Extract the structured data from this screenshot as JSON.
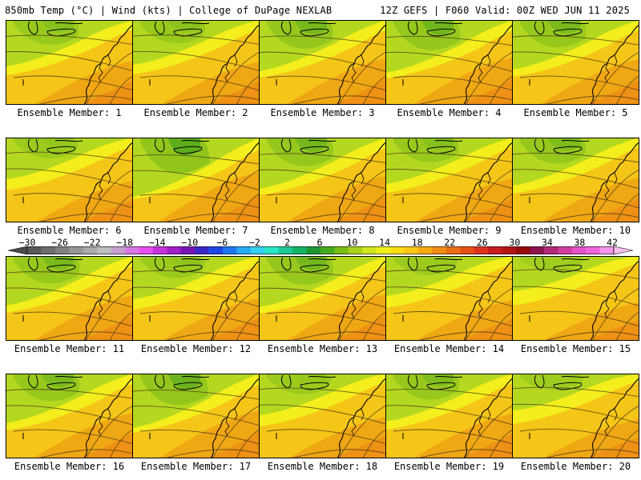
{
  "header": {
    "left": "850mb Temp (°C) | Wind (kts) | College of DuPage NEXLAB",
    "right": "12Z GEFS | F060 Valid: 00Z WED JUN 11 2025"
  },
  "panels": [
    {
      "label": "Ensemble Member: 1",
      "cool": 0.45
    },
    {
      "label": "Ensemble Member: 2",
      "cool": 0.4
    },
    {
      "label": "Ensemble Member: 3",
      "cool": 0.6
    },
    {
      "label": "Ensemble Member: 4",
      "cool": 0.65
    },
    {
      "label": "Ensemble Member: 5",
      "cool": 0.55
    },
    {
      "label": "Ensemble Member: 6",
      "cool": 0.3
    },
    {
      "label": "Ensemble Member: 7",
      "cool": 0.85
    },
    {
      "label": "Ensemble Member: 8",
      "cool": 0.6
    },
    {
      "label": "Ensemble Member: 9",
      "cool": 0.45
    },
    {
      "label": "Ensemble Member: 10",
      "cool": 0.5
    },
    {
      "label": "Ensemble Member: 11",
      "cool": 0.55
    },
    {
      "label": "Ensemble Member: 12",
      "cool": 0.35
    },
    {
      "label": "Ensemble Member: 13",
      "cool": 0.6
    },
    {
      "label": "Ensemble Member: 14",
      "cool": 0.25
    },
    {
      "label": "Ensemble Member: 15",
      "cool": 0.1
    },
    {
      "label": "Ensemble Member: 16",
      "cool": 0.55
    },
    {
      "label": "Ensemble Member: 17",
      "cool": 0.7
    },
    {
      "label": "Ensemble Member: 18",
      "cool": 0.3
    },
    {
      "label": "Ensemble Member: 19",
      "cool": 0.5
    },
    {
      "label": "Ensemble Member: 20",
      "cool": 0.15
    }
  ],
  "colorbar": {
    "ticks": [
      "−30",
      "−26",
      "−22",
      "−18",
      "−14",
      "−10",
      "−6",
      "−2",
      "2",
      "6",
      "10",
      "14",
      "18",
      "22",
      "26",
      "30",
      "34",
      "38",
      "42"
    ],
    "colors": [
      "#5a5a5a",
      "#6e6e6e",
      "#828282",
      "#969696",
      "#aaaaaa",
      "#bebebe",
      "#c8a0d2",
      "#d878e6",
      "#e650f0",
      "#c832dc",
      "#a020c8",
      "#7814b4",
      "#3c28c8",
      "#1e46e6",
      "#1e78f0",
      "#28aaf0",
      "#32d2f0",
      "#28e6c8",
      "#1ec896",
      "#14b464",
      "#1e9632",
      "#46aa1e",
      "#78be14",
      "#aad21e",
      "#d2e61e",
      "#f0f01e",
      "#fadc14",
      "#fac814",
      "#f5aa14",
      "#f08c14",
      "#eb6e14",
      "#e65014",
      "#dc321e",
      "#c81e1e",
      "#b41414",
      "#960a0a",
      "#8c1450",
      "#b4287a",
      "#d23ca0",
      "#e650c8",
      "#f064dc",
      "#f596ec"
    ],
    "arrow_left_color": "#4a4a4a",
    "arrow_right_color": "#f8c0f0"
  }
}
